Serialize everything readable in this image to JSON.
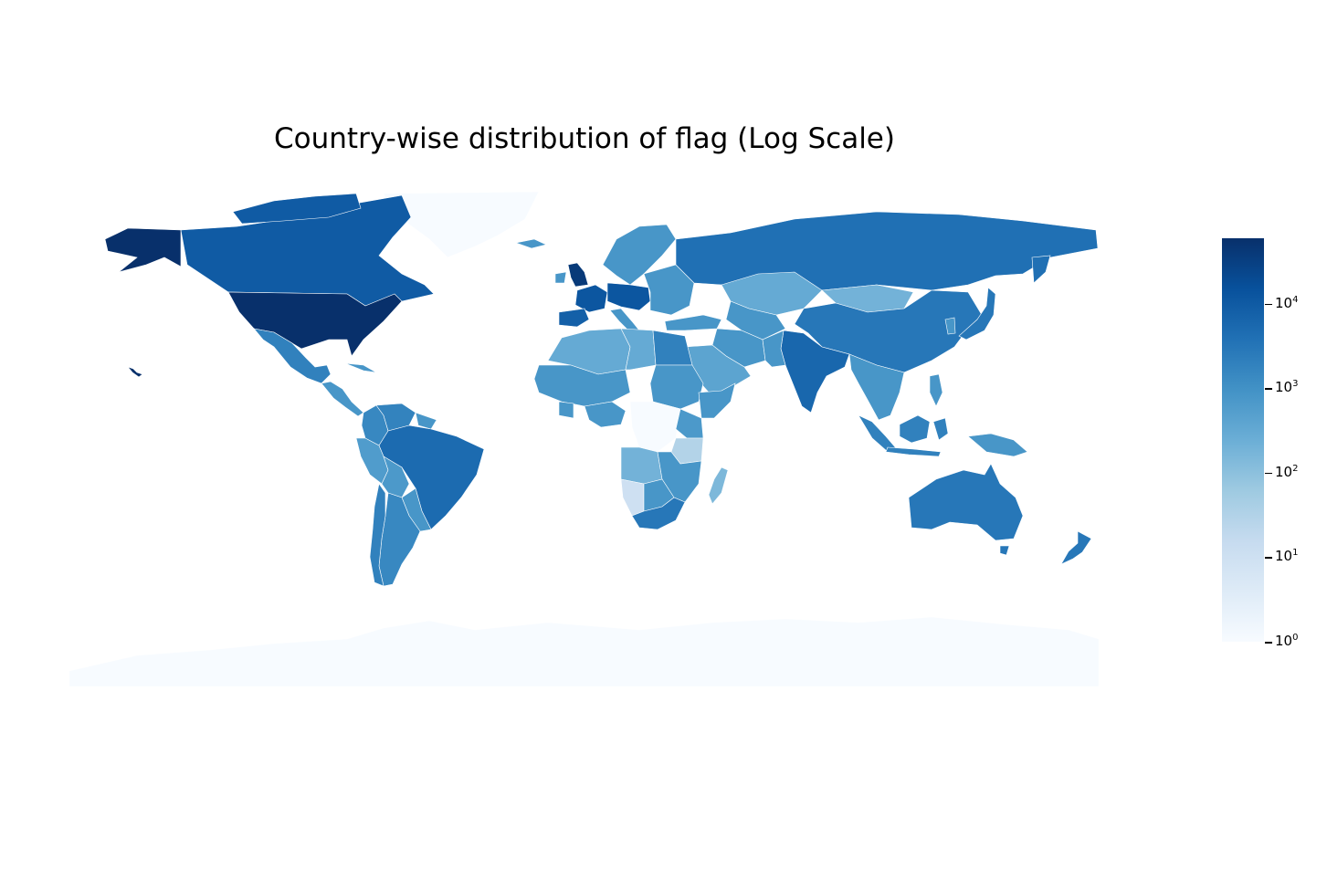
{
  "title": "Country-wise distribution of flag (Log Scale)",
  "chart_data": {
    "type": "choropleth",
    "title": "Country-wise distribution of flag (Log Scale)",
    "scale": "log",
    "colormap": "Blues",
    "colors": {
      "min": "#f7fbff",
      "max": "#08306b"
    },
    "colorbar": {
      "range": [
        1,
        60000
      ],
      "ticks": [
        {
          "base": "10",
          "exp": "0",
          "value": 1
        },
        {
          "base": "10",
          "exp": "1",
          "value": 10
        },
        {
          "base": "10",
          "exp": "2",
          "value": 100
        },
        {
          "base": "10",
          "exp": "3",
          "value": 1000
        },
        {
          "base": "10",
          "exp": "4",
          "value": 10000
        }
      ]
    },
    "countries": [
      {
        "name": "United States",
        "value": 60000
      },
      {
        "name": "Canada",
        "value": 10000
      },
      {
        "name": "Greenland",
        "value": 1
      },
      {
        "name": "Mexico",
        "value": 2000
      },
      {
        "name": "Brazil",
        "value": 5000
      },
      {
        "name": "Colombia",
        "value": 1500
      },
      {
        "name": "Venezuela",
        "value": 1800
      },
      {
        "name": "Peru",
        "value": 600
      },
      {
        "name": "Bolivia",
        "value": 700
      },
      {
        "name": "Argentina",
        "value": 1500
      },
      {
        "name": "Chile",
        "value": 2000
      },
      {
        "name": "United Kingdom",
        "value": 40000
      },
      {
        "name": "France",
        "value": 12000
      },
      {
        "name": "Spain",
        "value": 8000
      },
      {
        "name": "Germany",
        "value": 12000
      },
      {
        "name": "Russia",
        "value": 4000
      },
      {
        "name": "Kazakhstan",
        "value": 300
      },
      {
        "name": "Mongolia",
        "value": 200
      },
      {
        "name": "China",
        "value": 3000
      },
      {
        "name": "India",
        "value": 6000
      },
      {
        "name": "Japan",
        "value": 3000
      },
      {
        "name": "Saudi Arabia",
        "value": 400
      },
      {
        "name": "Egypt",
        "value": 2000
      },
      {
        "name": "Algeria",
        "value": 300
      },
      {
        "name": "Libya",
        "value": 300
      },
      {
        "name": "Nigeria",
        "value": 800
      },
      {
        "name": "DR Congo",
        "value": 1
      },
      {
        "name": "Kenya",
        "value": 700
      },
      {
        "name": "Tanzania",
        "value": 30
      },
      {
        "name": "Angola",
        "value": 200
      },
      {
        "name": "Namibia",
        "value": 10
      },
      {
        "name": "South Africa",
        "value": 3000
      },
      {
        "name": "Madagascar",
        "value": 150
      },
      {
        "name": "Indonesia",
        "value": 2000
      },
      {
        "name": "Australia",
        "value": 3000
      },
      {
        "name": "New Zealand",
        "value": 3000
      },
      {
        "name": "Antarctica",
        "value": 1
      }
    ]
  }
}
